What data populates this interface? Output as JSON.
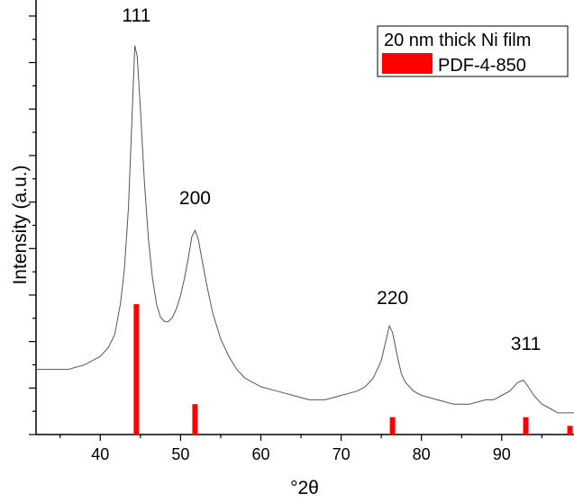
{
  "chart_data": {
    "type": "line",
    "title": "",
    "xlabel": "°2θ",
    "ylabel": "Intensity (a.u.)",
    "xlim": [
      32,
      99
    ],
    "ylim": [
      0,
      1
    ],
    "x_ticks": [
      40,
      50,
      60,
      70,
      80,
      90
    ],
    "x_tick_labels": [
      "40",
      "50",
      "60",
      "70",
      "80",
      "90"
    ],
    "y_tick_labels_shown": false,
    "grid": false,
    "legend": {
      "placement": "top-right",
      "entries": [
        {
          "label": "20 nm thick Ni film",
          "style": "line",
          "color": "#555555"
        },
        {
          "label": "PDF-4-850",
          "style": "bar",
          "color": "#ff0000"
        }
      ]
    },
    "series": [
      {
        "name": "20 nm thick Ni film",
        "color": "#555555",
        "x": [
          32,
          34,
          36,
          38,
          39,
          40,
          41,
          41.8,
          42.5,
          43,
          43.5,
          44,
          44.3,
          44.6,
          45,
          45.5,
          46,
          46.5,
          47,
          47.5,
          48,
          48.5,
          49,
          49.5,
          50,
          50.5,
          51,
          51.4,
          51.8,
          52.2,
          52.7,
          53.2,
          54,
          55,
          56,
          57,
          58,
          60,
          62,
          64,
          66,
          68,
          70,
          72,
          73,
          74,
          75,
          75.5,
          76,
          76.4,
          77,
          77.5,
          78,
          79,
          80,
          82,
          84,
          86,
          88,
          89,
          90,
          91,
          92,
          92.7,
          93.3,
          94,
          95,
          96,
          97,
          98,
          99
        ],
        "y": [
          0.15,
          0.15,
          0.15,
          0.16,
          0.17,
          0.18,
          0.2,
          0.23,
          0.3,
          0.38,
          0.52,
          0.75,
          0.895,
          0.87,
          0.75,
          0.58,
          0.45,
          0.36,
          0.3,
          0.27,
          0.26,
          0.26,
          0.27,
          0.29,
          0.32,
          0.36,
          0.41,
          0.455,
          0.47,
          0.45,
          0.4,
          0.35,
          0.28,
          0.22,
          0.18,
          0.15,
          0.13,
          0.11,
          0.1,
          0.09,
          0.08,
          0.08,
          0.09,
          0.1,
          0.11,
          0.13,
          0.17,
          0.21,
          0.25,
          0.235,
          0.18,
          0.14,
          0.12,
          0.1,
          0.09,
          0.08,
          0.07,
          0.07,
          0.08,
          0.08,
          0.09,
          0.1,
          0.12,
          0.125,
          0.11,
          0.09,
          0.07,
          0.06,
          0.05,
          0.05,
          0.05
        ]
      },
      {
        "name": "PDF-4-850",
        "type": "bar",
        "color": "#ff0000",
        "x": [
          44.5,
          51.8,
          76.4,
          93.0,
          98.5
        ],
        "y": [
          0.3,
          0.07,
          0.04,
          0.04,
          0.02
        ]
      }
    ],
    "annotations": [
      {
        "text": "111",
        "x": 44.5,
        "y": 0.95
      },
      {
        "text": "200",
        "x": 51.8,
        "y": 0.53
      },
      {
        "text": "220",
        "x": 76.4,
        "y": 0.3
      },
      {
        "text": "311",
        "x": 93.0,
        "y": 0.195
      }
    ]
  }
}
